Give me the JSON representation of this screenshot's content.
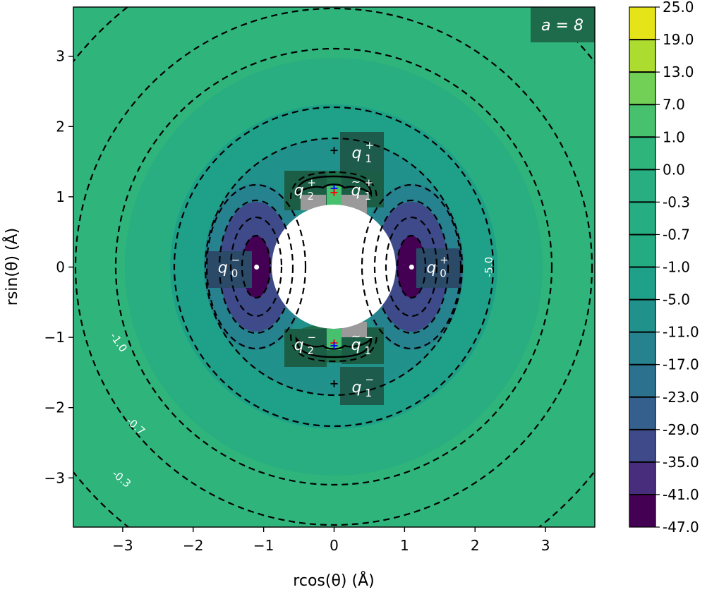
{
  "chart_data": {
    "type": "heatmap",
    "xlabel": "rcos(θ) (Å)",
    "ylabel": "rsin(θ) (Å)",
    "xlim": [
      -3.7,
      3.7
    ],
    "ylim": [
      -3.7,
      3.7
    ],
    "x_ticks": [
      "−3",
      "−2",
      "−1",
      "0",
      "1",
      "2",
      "3"
    ],
    "x_tick_values": [
      -3,
      -2,
      -1,
      0,
      1,
      2,
      3
    ],
    "y_ticks": [
      "−3",
      "−2",
      "−1",
      "0",
      "1",
      "2",
      "3"
    ],
    "y_tick_values": [
      -3,
      -2,
      -1,
      0,
      1,
      2,
      3
    ],
    "parameter_label": "a = 8",
    "colorbar": {
      "levels": [
        "25.0",
        "19.0",
        "13.0",
        "7.0",
        "1.0",
        "0.0",
        "-0.3",
        "-0.7",
        "-1.0",
        "-5.0",
        "-11.0",
        "-17.0",
        "-23.0",
        "-29.0",
        "-35.0",
        "-41.0",
        "-47.0"
      ],
      "colors": [
        "#e5e419",
        "#addc30",
        "#73d056",
        "#48c16e",
        "#2fb47c",
        "#28ae80",
        "#26ad81",
        "#25ab82",
        "#1fa088",
        "#21918c",
        "#26828e",
        "#2c728e",
        "#355f8d",
        "#3e4a89",
        "#472d7b",
        "#440154"
      ]
    },
    "contour_labels": [
      {
        "text": "-5.0",
        "x": 2.25,
        "y": 0.0,
        "rotate": -90
      },
      {
        "text": "-1.0",
        "x": -3.1,
        "y": -1.1,
        "rotate": 55
      },
      {
        "text": "-0.7",
        "x": -2.85,
        "y": -2.3,
        "rotate": 42
      },
      {
        "text": "-0.3",
        "x": -3.05,
        "y": -3.05,
        "rotate": 40
      }
    ],
    "charge_labels": [
      {
        "base": "q",
        "sub": "1",
        "sup": "+",
        "tilde": false,
        "x": 0.42,
        "y": 1.63
      },
      {
        "base": "q",
        "sub": "2",
        "sup": "+",
        "tilde": false,
        "x": -0.4,
        "y": 1.1
      },
      {
        "base": "q",
        "sub": "1",
        "sup": "+",
        "tilde": true,
        "x": 0.41,
        "y": 1.1
      },
      {
        "base": "q",
        "sub": "0",
        "sup": "−",
        "tilde": false,
        "x": -1.48,
        "y": 0.0
      },
      {
        "base": "q",
        "sub": "0",
        "sup": "+",
        "tilde": false,
        "x": 1.48,
        "y": 0.0
      },
      {
        "base": "q",
        "sub": "2",
        "sup": "−",
        "tilde": false,
        "x": -0.4,
        "y": -1.1
      },
      {
        "base": "q",
        "sub": "1",
        "sup": "−",
        "tilde": true,
        "x": 0.41,
        "y": -1.1
      },
      {
        "base": "q",
        "sub": "1",
        "sup": "−",
        "tilde": false,
        "x": 0.42,
        "y": -1.7
      }
    ]
  }
}
